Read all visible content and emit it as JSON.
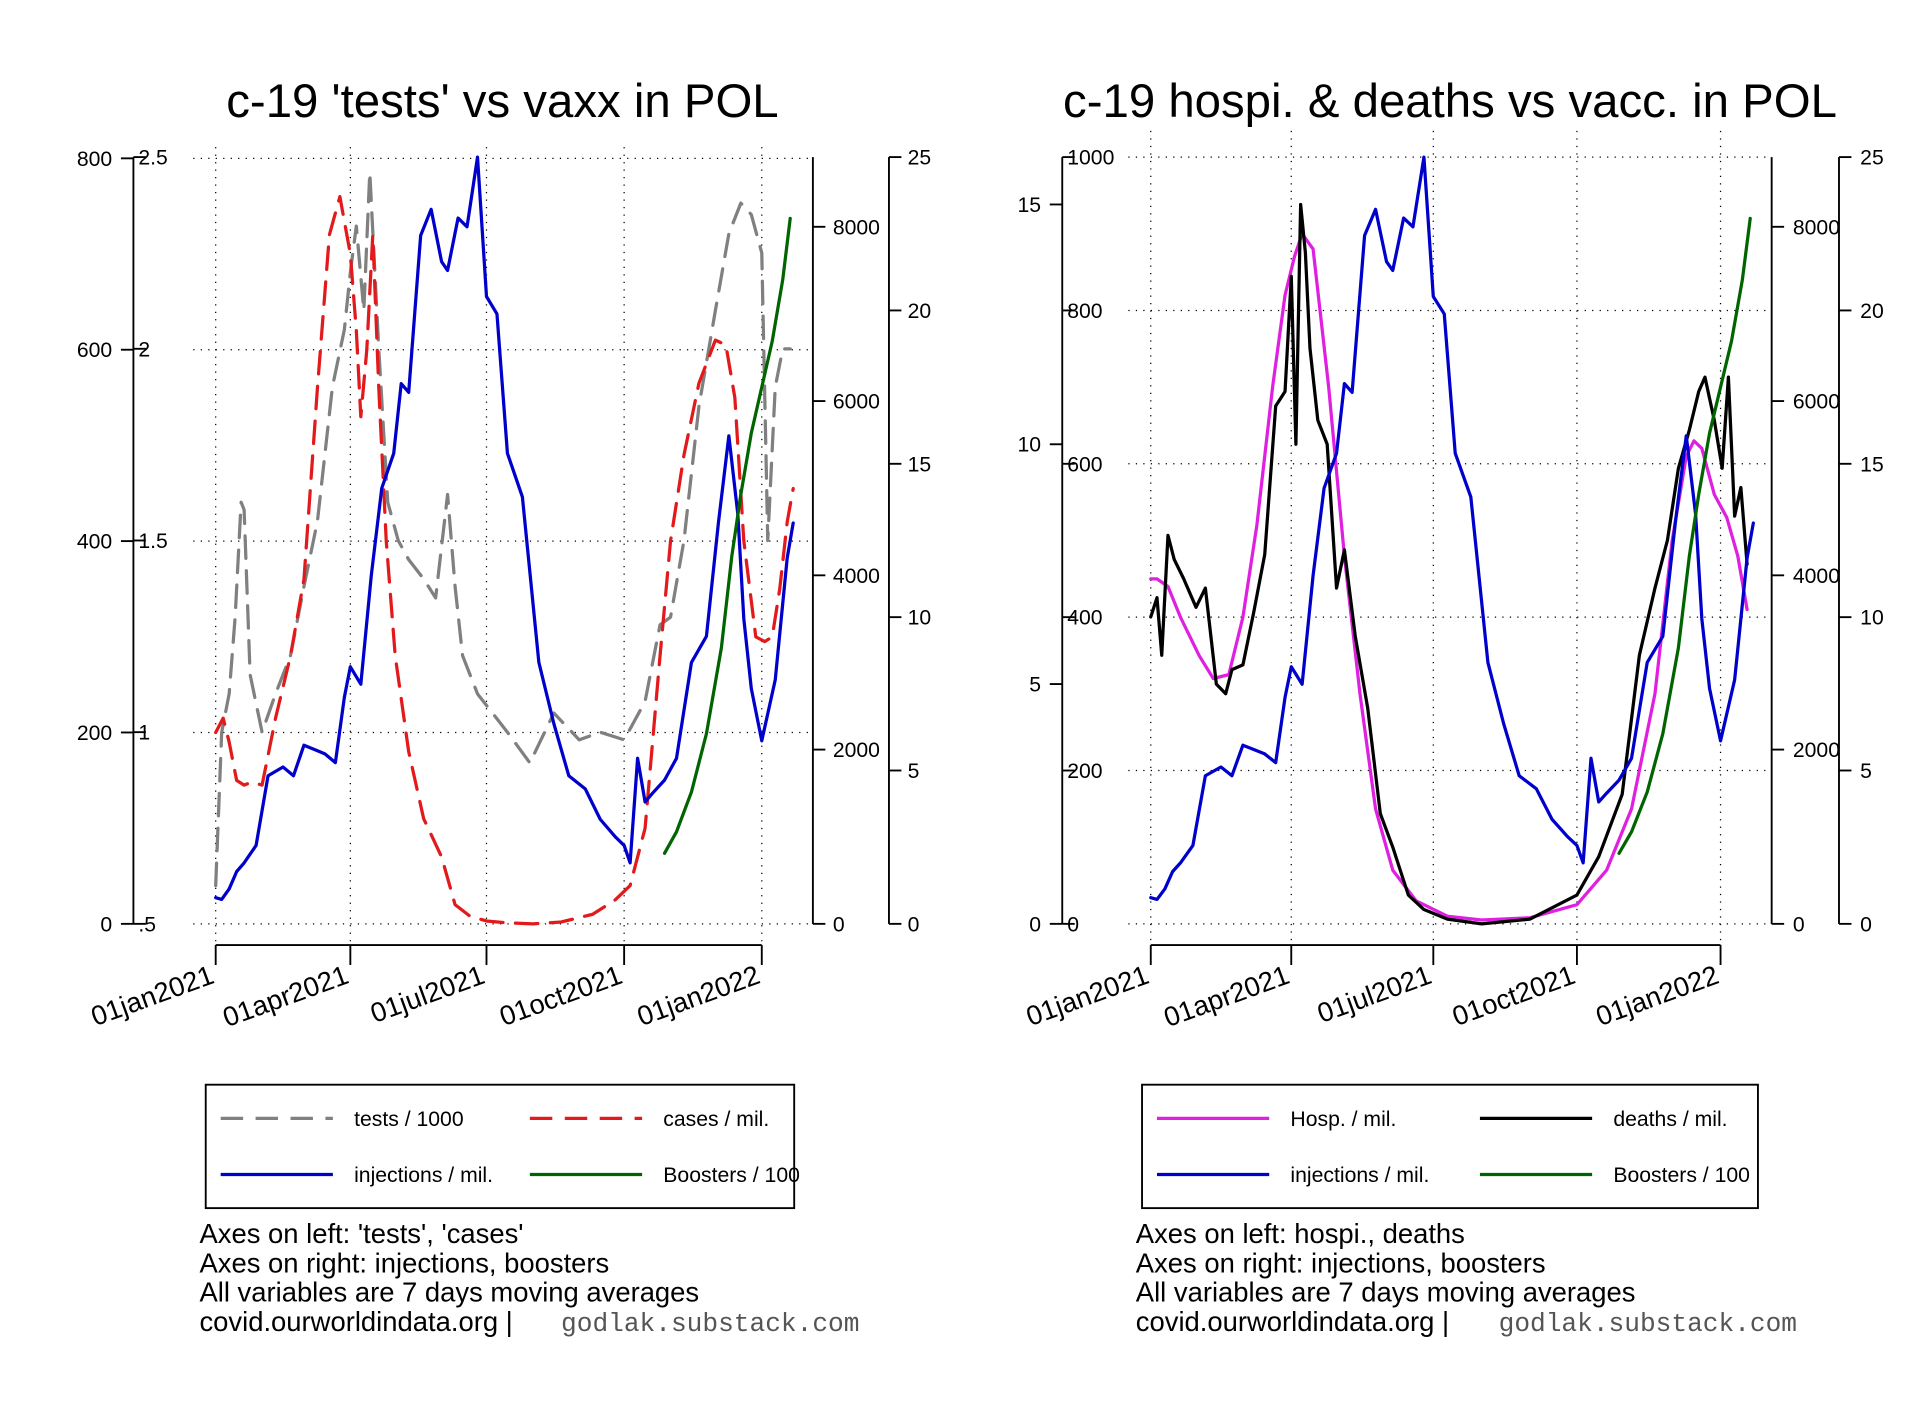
{
  "chart_data": [
    {
      "type": "line",
      "title": "c-19 'tests' vs vaxx in POL",
      "x_ticks": [
        "01jan2021",
        "01apr2021",
        "01jul2021",
        "01oct2021",
        "01jan2022"
      ],
      "x_range": [
        "2021-01-01",
        "2022-01-24"
      ],
      "left_axes": [
        {
          "ticks": [
            "0",
            "200",
            "400",
            "600",
            "800"
          ],
          "range": [
            0,
            800
          ]
        },
        {
          "ticks": [
            ".5",
            "1",
            "1.5",
            "2",
            "2.5"
          ],
          "range": [
            0.5,
            2.5
          ]
        }
      ],
      "right_axes": [
        {
          "ticks": [
            "0",
            "2000",
            "4000",
            "6000",
            "8000"
          ],
          "range": [
            0,
            8800
          ]
        },
        {
          "ticks": [
            "0",
            "5",
            "10",
            "15",
            "20",
            "25"
          ],
          "range": [
            0,
            25
          ]
        }
      ],
      "grid": true,
      "legend_position": "bottom",
      "series": [
        {
          "name": "tests / 1000",
          "color": "#808080",
          "dash": "dash",
          "axis": "left_1",
          "x": [
            "2021-01-01",
            "2021-01-05",
            "2021-01-10",
            "2021-01-14",
            "2021-01-18",
            "2021-01-20",
            "2021-01-24",
            "2021-02-01",
            "2021-02-10",
            "2021-02-20",
            "2021-03-01",
            "2021-03-10",
            "2021-03-20",
            "2021-03-28",
            "2021-04-01",
            "2021-04-05",
            "2021-04-10",
            "2021-04-14",
            "2021-04-20",
            "2021-04-26",
            "2021-05-03",
            "2021-05-10",
            "2021-05-20",
            "2021-05-28",
            "2021-06-05",
            "2021-06-10",
            "2021-06-15",
            "2021-06-25",
            "2021-07-05",
            "2021-07-15",
            "2021-07-30",
            "2021-08-15",
            "2021-09-01",
            "2021-09-15",
            "2021-10-01",
            "2021-10-15",
            "2021-10-25",
            "2021-11-01",
            "2021-11-10",
            "2021-11-20",
            "2021-12-01",
            "2021-12-10",
            "2021-12-18",
            "2021-12-25",
            "2022-01-01",
            "2022-01-05",
            "2022-01-10",
            "2022-01-15",
            "2022-01-20"
          ],
          "values": [
            0.6,
            1.0,
            1.1,
            1.3,
            1.6,
            1.58,
            1.15,
            1.0,
            1.1,
            1.2,
            1.38,
            1.55,
            1.9,
            2.05,
            2.2,
            2.32,
            2.1,
            2.46,
            2.0,
            1.6,
            1.5,
            1.45,
            1.4,
            1.35,
            1.62,
            1.38,
            1.2,
            1.1,
            1.05,
            1.0,
            0.92,
            1.05,
            0.98,
            1.0,
            0.98,
            1.08,
            1.28,
            1.3,
            1.5,
            1.85,
            2.1,
            2.3,
            2.38,
            2.35,
            2.25,
            1.5,
            1.9,
            2.0,
            2.0
          ]
        },
        {
          "name": "cases / mil.",
          "color": "#e31a1c",
          "dash": "dash",
          "axis": "left_0",
          "x": [
            "2021-01-01",
            "2021-01-06",
            "2021-01-10",
            "2021-01-15",
            "2021-01-20",
            "2021-01-25",
            "2021-02-01",
            "2021-02-10",
            "2021-02-20",
            "2021-03-01",
            "2021-03-10",
            "2021-03-18",
            "2021-03-25",
            "2021-04-01",
            "2021-04-05",
            "2021-04-08",
            "2021-04-12",
            "2021-04-16",
            "2021-04-20",
            "2021-04-25",
            "2021-05-01",
            "2021-05-10",
            "2021-05-20",
            "2021-06-01",
            "2021-06-10",
            "2021-06-20",
            "2021-07-01",
            "2021-07-15",
            "2021-08-01",
            "2021-08-20",
            "2021-09-10",
            "2021-09-25",
            "2021-10-05",
            "2021-10-15",
            "2021-10-25",
            "2021-11-01",
            "2021-11-10",
            "2021-11-20",
            "2021-12-01",
            "2021-12-08",
            "2021-12-14",
            "2021-12-20",
            "2021-12-28",
            "2022-01-03",
            "2022-01-08",
            "2022-01-13",
            "2022-01-18",
            "2022-01-22"
          ],
          "values": [
            200,
            215,
            190,
            150,
            145,
            148,
            145,
            215,
            280,
            360,
            560,
            720,
            760,
            700,
            620,
            530,
            600,
            720,
            560,
            400,
            280,
            180,
            110,
            70,
            20,
            8,
            3,
            1,
            0,
            2,
            10,
            25,
            40,
            100,
            280,
            400,
            490,
            565,
            610,
            605,
            550,
            400,
            300,
            295,
            300,
            350,
            420,
            455
          ]
        },
        {
          "name": "injections / mil.",
          "color": "#0000cc",
          "dash": "solid",
          "axis": "right_0",
          "x": [
            "2021-01-01",
            "2021-01-05",
            "2021-01-10",
            "2021-01-15",
            "2021-01-20",
            "2021-01-28",
            "2021-02-05",
            "2021-02-15",
            "2021-02-22",
            "2021-03-01",
            "2021-03-08",
            "2021-03-15",
            "2021-03-22",
            "2021-03-28",
            "2021-04-01",
            "2021-04-08",
            "2021-04-15",
            "2021-04-22",
            "2021-04-30",
            "2021-05-05",
            "2021-05-10",
            "2021-05-18",
            "2021-05-25",
            "2021-06-01",
            "2021-06-05",
            "2021-06-12",
            "2021-06-18",
            "2021-06-25",
            "2021-07-01",
            "2021-07-08",
            "2021-07-15",
            "2021-07-25",
            "2021-08-05",
            "2021-08-15",
            "2021-08-25",
            "2021-09-05",
            "2021-09-15",
            "2021-09-25",
            "2021-10-01",
            "2021-10-05",
            "2021-10-10",
            "2021-10-15",
            "2021-10-20",
            "2021-10-28",
            "2021-11-05",
            "2021-11-15",
            "2021-11-25",
            "2021-12-03",
            "2021-12-10",
            "2021-12-16",
            "2021-12-20",
            "2021-12-25",
            "2022-01-01",
            "2022-01-10",
            "2022-01-18",
            "2022-01-22"
          ],
          "values": [
            300,
            280,
            400,
            600,
            700,
            900,
            1700,
            1800,
            1700,
            2050,
            2000,
            1950,
            1850,
            2600,
            2950,
            2750,
            4000,
            5000,
            5400,
            6200,
            6100,
            7900,
            8200,
            7600,
            7500,
            8100,
            8000,
            8800,
            7200,
            7000,
            5400,
            4900,
            3000,
            2300,
            1700,
            1550,
            1200,
            1000,
            900,
            700,
            1900,
            1400,
            1500,
            1650,
            1900,
            3000,
            3300,
            4600,
            5600,
            4700,
            3500,
            2700,
            2100,
            2800,
            4200,
            4600
          ]
        },
        {
          "name": "Boosters / 100",
          "color": "#006400",
          "dash": "solid",
          "axis": "right_1",
          "x": [
            "2021-10-28",
            "2021-11-05",
            "2021-11-15",
            "2021-11-25",
            "2021-12-05",
            "2021-12-12",
            "2021-12-18",
            "2021-12-25",
            "2022-01-01",
            "2022-01-08",
            "2022-01-15",
            "2022-01-20"
          ],
          "values": [
            2.3,
            3,
            4.3,
            6.2,
            9,
            12,
            14,
            16,
            17.5,
            19,
            21,
            23
          ]
        }
      ],
      "notes": [
        "Axes on left: 'tests', 'cases'",
        "Axes on right: injections, boosters",
        "All variables are 7 days moving averages",
        "covid.ourworldindata.org |"
      ],
      "credit": "godlak.substack.com"
    },
    {
      "type": "line",
      "title": "c-19 hospi. & deaths vs vacc. in POL",
      "x_ticks": [
        "01jan2021",
        "01apr2021",
        "01jul2021",
        "01oct2021",
        "01jan2022"
      ],
      "x_range": [
        "2021-01-01",
        "2022-01-24"
      ],
      "left_axes": [
        {
          "ticks": [
            "0",
            "200",
            "400",
            "600",
            "800",
            "1000"
          ],
          "range": [
            0,
            1000
          ]
        },
        {
          "ticks": [
            "0",
            "5",
            "10",
            "15"
          ],
          "range": [
            0,
            15
          ]
        }
      ],
      "right_axes": [
        {
          "ticks": [
            "0",
            "2000",
            "4000",
            "6000",
            "8000"
          ],
          "range": [
            0,
            8800
          ]
        },
        {
          "ticks": [
            "0",
            "5",
            "10",
            "15",
            "20",
            "25"
          ],
          "range": [
            0,
            25
          ]
        }
      ],
      "grid": true,
      "legend_position": "bottom",
      "series": [
        {
          "name": "Hosp. / mil.",
          "color": "#e020e0",
          "dash": "solid",
          "axis": "left_0",
          "x": [
            "2021-01-01",
            "2021-01-05",
            "2021-01-12",
            "2021-01-20",
            "2021-02-01",
            "2021-02-10",
            "2021-02-20",
            "2021-03-01",
            "2021-03-10",
            "2021-03-20",
            "2021-03-28",
            "2021-04-03",
            "2021-04-08",
            "2021-04-15",
            "2021-04-25",
            "2021-05-05",
            "2021-05-15",
            "2021-05-25",
            "2021-06-05",
            "2021-06-20",
            "2021-07-10",
            "2021-08-01",
            "2021-09-01",
            "2021-10-01",
            "2021-10-20",
            "2021-11-05",
            "2021-11-20",
            "2021-12-01",
            "2021-12-10",
            "2021-12-15",
            "2021-12-20",
            "2021-12-28",
            "2022-01-05",
            "2022-01-12",
            "2022-01-18"
          ],
          "values": [
            450,
            450,
            440,
            400,
            350,
            320,
            325,
            400,
            520,
            700,
            820,
            870,
            900,
            880,
            700,
            480,
            300,
            150,
            70,
            30,
            10,
            5,
            8,
            25,
            70,
            150,
            300,
            500,
            610,
            630,
            620,
            560,
            530,
            480,
            410
          ]
        },
        {
          "name": "deaths / mil.",
          "color": "#000000",
          "dash": "solid",
          "axis": "left_1",
          "x": [
            "2021-01-01",
            "2021-01-05",
            "2021-01-08",
            "2021-01-12",
            "2021-01-16",
            "2021-01-22",
            "2021-01-30",
            "2021-02-05",
            "2021-02-12",
            "2021-02-18",
            "2021-02-22",
            "2021-03-01",
            "2021-03-08",
            "2021-03-15",
            "2021-03-22",
            "2021-03-28",
            "2021-04-01",
            "2021-04-04",
            "2021-04-07",
            "2021-04-10",
            "2021-04-13",
            "2021-04-18",
            "2021-04-24",
            "2021-04-30",
            "2021-05-05",
            "2021-05-12",
            "2021-05-20",
            "2021-05-28",
            "2021-06-05",
            "2021-06-15",
            "2021-06-25",
            "2021-07-10",
            "2021-08-01",
            "2021-09-01",
            "2021-10-01",
            "2021-10-15",
            "2021-10-30",
            "2021-11-10",
            "2021-11-20",
            "2021-11-28",
            "2021-12-05",
            "2021-12-12",
            "2021-12-18",
            "2021-12-22",
            "2021-12-28",
            "2022-01-02",
            "2022-01-06",
            "2022-01-10",
            "2022-01-14",
            "2022-01-18"
          ],
          "values": [
            6.4,
            6.8,
            5.6,
            8.1,
            7.6,
            7.2,
            6.6,
            7.0,
            5.0,
            4.8,
            5.3,
            5.4,
            6.5,
            7.7,
            10.8,
            11.1,
            13.5,
            10.0,
            15.0,
            14.0,
            12.0,
            10.5,
            10.0,
            7.0,
            7.8,
            6.0,
            4.5,
            2.3,
            1.6,
            0.6,
            0.3,
            0.1,
            0,
            0.1,
            0.6,
            1.4,
            2.7,
            5.6,
            7.0,
            8.0,
            9.5,
            10.3,
            11.1,
            11.4,
            10.5,
            9.5,
            11.4,
            8.5,
            9.1,
            7.5
          ]
        },
        {
          "name": "injections / mil.",
          "color": "#0000cc",
          "dash": "solid",
          "axis": "right_0",
          "x": [
            "2021-01-01",
            "2021-01-05",
            "2021-01-10",
            "2021-01-15",
            "2021-01-20",
            "2021-01-28",
            "2021-02-05",
            "2021-02-15",
            "2021-02-22",
            "2021-03-01",
            "2021-03-08",
            "2021-03-15",
            "2021-03-22",
            "2021-03-28",
            "2021-04-01",
            "2021-04-08",
            "2021-04-15",
            "2021-04-22",
            "2021-04-30",
            "2021-05-05",
            "2021-05-10",
            "2021-05-18",
            "2021-05-25",
            "2021-06-01",
            "2021-06-05",
            "2021-06-12",
            "2021-06-18",
            "2021-06-25",
            "2021-07-01",
            "2021-07-08",
            "2021-07-15",
            "2021-07-25",
            "2021-08-05",
            "2021-08-15",
            "2021-08-25",
            "2021-09-05",
            "2021-09-15",
            "2021-09-25",
            "2021-10-01",
            "2021-10-05",
            "2021-10-10",
            "2021-10-15",
            "2021-10-20",
            "2021-10-28",
            "2021-11-05",
            "2021-11-15",
            "2021-11-25",
            "2021-12-03",
            "2021-12-10",
            "2021-12-16",
            "2021-12-20",
            "2021-12-25",
            "2022-01-01",
            "2022-01-10",
            "2022-01-18",
            "2022-01-22"
          ],
          "values": [
            300,
            280,
            400,
            600,
            700,
            900,
            1700,
            1800,
            1700,
            2050,
            2000,
            1950,
            1850,
            2600,
            2950,
            2750,
            4000,
            5000,
            5400,
            6200,
            6100,
            7900,
            8200,
            7600,
            7500,
            8100,
            8000,
            8800,
            7200,
            7000,
            5400,
            4900,
            3000,
            2300,
            1700,
            1550,
            1200,
            1000,
            900,
            700,
            1900,
            1400,
            1500,
            1650,
            1900,
            3000,
            3300,
            4600,
            5600,
            4700,
            3500,
            2700,
            2100,
            2800,
            4200,
            4600
          ]
        },
        {
          "name": "Boosters / 100",
          "color": "#006400",
          "dash": "solid",
          "axis": "right_1",
          "x": [
            "2021-10-28",
            "2021-11-05",
            "2021-11-15",
            "2021-11-25",
            "2021-12-05",
            "2021-12-12",
            "2021-12-18",
            "2021-12-25",
            "2022-01-01",
            "2022-01-08",
            "2022-01-15",
            "2022-01-20"
          ],
          "values": [
            2.3,
            3,
            4.3,
            6.2,
            9,
            12,
            14,
            16,
            17.5,
            19,
            21,
            23
          ]
        }
      ],
      "notes": [
        "Axes on left: hospi., deaths",
        "Axes on right: injections, boosters",
        "All variables are 7 days moving averages",
        "covid.ourworldindata.org |"
      ],
      "credit": "godlak.substack.com"
    }
  ]
}
